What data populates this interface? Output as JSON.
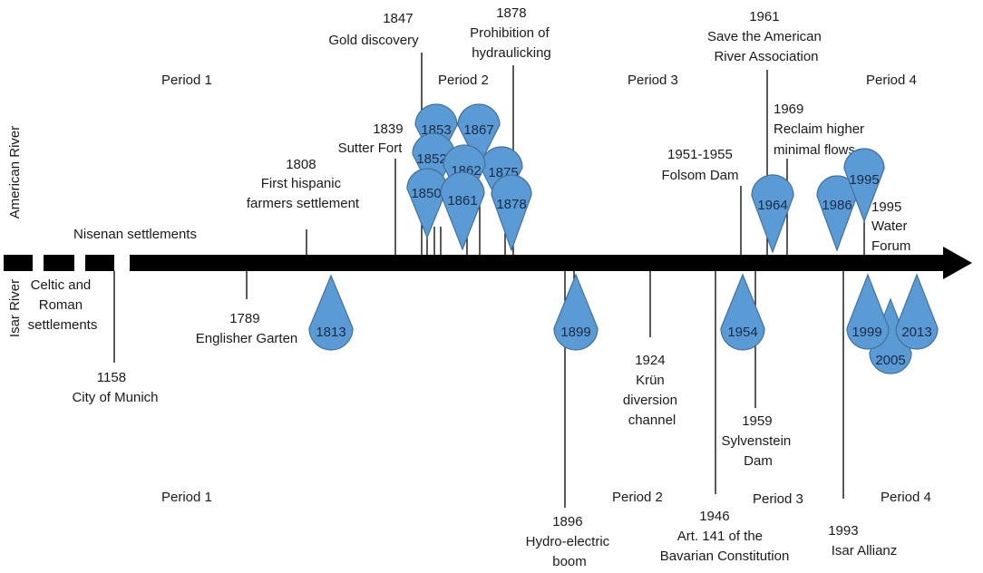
{
  "row_labels": {
    "american": "American River",
    "isar": "Isar River"
  },
  "periods": {
    "american": [
      "Period 1",
      "Period 2",
      "Period 3",
      "Period 4"
    ],
    "isar": [
      "Period 1",
      "Period 2",
      "Period 3",
      "Period 4"
    ]
  },
  "events_american": [
    {
      "id": "nisenan",
      "lines": [
        "Nisenan settlements"
      ]
    },
    {
      "id": "1808",
      "lines": [
        "1808",
        "First hispanic",
        "farmers settlement"
      ]
    },
    {
      "id": "1839",
      "lines": [
        "1839",
        "Sutter Fort"
      ]
    },
    {
      "id": "1847",
      "lines": [
        "1847",
        "Gold discovery"
      ]
    },
    {
      "id": "1878",
      "lines": [
        "1878",
        "Prohibition of",
        "hydraulicking"
      ]
    },
    {
      "id": "1951",
      "lines": [
        "1951-1955",
        "Folsom Dam"
      ]
    },
    {
      "id": "1961",
      "lines": [
        "1961",
        "Save the American",
        "River Association"
      ]
    },
    {
      "id": "1969",
      "lines": [
        "1969",
        "Reclaim higher",
        "minimal flows"
      ]
    },
    {
      "id": "1995",
      "lines": [
        "1995",
        "Water",
        "Forum"
      ]
    }
  ],
  "events_isar": [
    {
      "id": "celtic",
      "lines": [
        "Celtic and",
        "Roman",
        "settlements"
      ]
    },
    {
      "id": "1158",
      "lines": [
        "1158",
        "City of Munich"
      ]
    },
    {
      "id": "1789",
      "lines": [
        "1789",
        "Englisher Garten"
      ]
    },
    {
      "id": "1896",
      "lines": [
        "1896",
        "Hydro-electric",
        "boom"
      ]
    },
    {
      "id": "1924",
      "lines": [
        "1924",
        "Krün",
        "diversion",
        "channel"
      ]
    },
    {
      "id": "1946",
      "lines": [
        "1946",
        "Art. 141 of the",
        "Bavarian Constitution"
      ]
    },
    {
      "id": "1959",
      "lines": [
        "1959",
        "Sylvenstein",
        "Dam"
      ]
    },
    {
      "id": "1993",
      "lines": [
        "1993",
        "Isar Allianz"
      ]
    }
  ],
  "drops_american": [
    "1853",
    "1867",
    "1852",
    "1862",
    "1875",
    "1850",
    "1861",
    "1878",
    "1964",
    "1986",
    "1995"
  ],
  "drops_isar": [
    "1813",
    "1899",
    "1954",
    "1999",
    "2013",
    "2005"
  ],
  "colors": {
    "drop_fill": "#5b9bd5",
    "drop_stroke": "#41719c",
    "axis": "#000000"
  }
}
